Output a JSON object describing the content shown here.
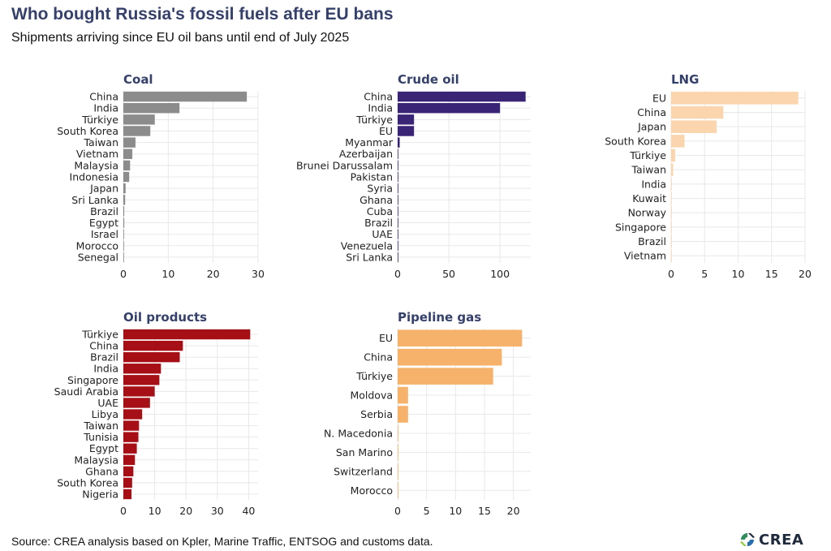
{
  "header": {
    "title": "Who bought Russia's fossil fuels after EU bans",
    "subtitle": "Shipments arriving since EU oil bans until end of July 2025"
  },
  "footer": {
    "source": "Source: CREA analysis based on Kpler, Marine Traffic, ENTSOG and customs data.",
    "logo_text": "CREA"
  },
  "colors": {
    "title": "#35406b",
    "coal": "#8c8c8c",
    "crude_oil": "#3a2476",
    "lng": "#fbd5ae",
    "oil_products": "#a50f15",
    "pipeline_gas": "#f6b26b",
    "grid": "#e8e8e8"
  },
  "chart_data": [
    {
      "type": "bar",
      "orientation": "horizontal",
      "title": "Coal",
      "categories": [
        "China",
        "India",
        "Türkiye",
        "South Korea",
        "Taiwan",
        "Vietnam",
        "Malaysia",
        "Indonesia",
        "Japan",
        "Sri Lanka",
        "Brazil",
        "Egypt",
        "Israel",
        "Morocco",
        "Senegal"
      ],
      "values": [
        27.5,
        12.5,
        7,
        6,
        2.7,
        2,
        1.5,
        1.3,
        0.5,
        0.4,
        0.2,
        0.2,
        0.1,
        0.1,
        0.1
      ],
      "xlim": [
        0,
        30
      ],
      "xticks": [
        0,
        10,
        20,
        30
      ],
      "xlabel": "",
      "ylabel": "",
      "grid": true
    },
    {
      "type": "bar",
      "orientation": "horizontal",
      "title": "Crude oil",
      "categories": [
        "China",
        "India",
        "Türkiye",
        "EU",
        "Myanmar",
        "Azerbaijan",
        "Brunei Darussalam",
        "Pakistan",
        "Syria",
        "Ghana",
        "Cuba",
        "Brazil",
        "UAE",
        "Venezuela",
        "Sri Lanka"
      ],
      "values": [
        125,
        100,
        16,
        16,
        2,
        0.3,
        0.3,
        0.3,
        0.2,
        0.2,
        0.2,
        0.1,
        0.1,
        0.1,
        0.1
      ],
      "xlim": [
        0,
        130
      ],
      "xticks": [
        0,
        50,
        100
      ],
      "xlabel": "",
      "ylabel": "",
      "grid": true
    },
    {
      "type": "bar",
      "orientation": "horizontal",
      "title": "LNG",
      "categories": [
        "EU",
        "China",
        "Japan",
        "South Korea",
        "Türkiye",
        "Taiwan",
        "India",
        "Kuwait",
        "Norway",
        "Singapore",
        "Brazil",
        "Vietnam"
      ],
      "values": [
        19,
        7.8,
        6.8,
        2,
        0.6,
        0.3,
        0.1,
        0.05,
        0.05,
        0.05,
        0.05,
        0.05
      ],
      "xlim": [
        0,
        20
      ],
      "xticks": [
        0,
        5,
        10,
        15,
        20
      ],
      "xlabel": "",
      "ylabel": "",
      "grid": true
    },
    {
      "type": "bar",
      "orientation": "horizontal",
      "title": "Oil products",
      "categories": [
        "Türkiye",
        "China",
        "Brazil",
        "India",
        "Singapore",
        "Saudi Arabia",
        "UAE",
        "Libya",
        "Taiwan",
        "Tunisia",
        "Egypt",
        "Malaysia",
        "Ghana",
        "South Korea",
        "Nigeria"
      ],
      "values": [
        40.5,
        19,
        18,
        12,
        11.5,
        10,
        8.5,
        6,
        5,
        4.8,
        4.3,
        3.7,
        3.2,
        2.8,
        2.6
      ],
      "xlim": [
        0,
        43
      ],
      "xticks": [
        0,
        10,
        20,
        30,
        40
      ],
      "xlabel": "",
      "ylabel": "",
      "grid": true
    },
    {
      "type": "bar",
      "orientation": "horizontal",
      "title": "Pipeline gas",
      "categories": [
        "EU",
        "China",
        "Türkiye",
        "Moldova",
        "Serbia",
        "N. Macedonia",
        "San Marino",
        "Switzerland",
        "Morocco"
      ],
      "values": [
        21.5,
        18,
        16.5,
        1.8,
        1.8,
        0.1,
        0.05,
        0.05,
        0.05
      ],
      "xlim": [
        0,
        23
      ],
      "xticks": [
        0,
        5,
        10,
        15,
        20
      ],
      "xlabel": "",
      "ylabel": "",
      "grid": true
    }
  ]
}
